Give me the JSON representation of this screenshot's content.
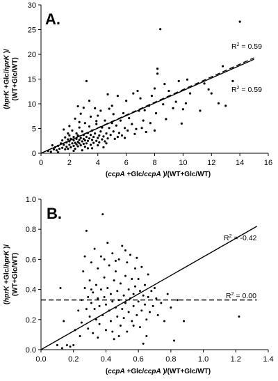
{
  "chart_data": [
    {
      "type": "scatter",
      "panel_label": "A.",
      "xlabel": {
        "paren_open": "(",
        "italic_1": "ccpA",
        "mid": " +Glc/",
        "italic_2": "ccpA",
        "tail": " )/(WT+Glc/WT)"
      },
      "ylabel_line1": {
        "paren_open": "(",
        "italic_1": "hprK",
        "mid": " +Glc/",
        "italic_2": "hprK",
        "tail": " )/"
      },
      "ylabel_line2": "(WT+Glc/WT)",
      "xlim": [
        0,
        16
      ],
      "ylim": [
        0,
        30
      ],
      "xticks": [
        0,
        2,
        4,
        6,
        8,
        10,
        12,
        14,
        16
      ],
      "yticks": [
        0,
        5,
        10,
        15,
        20,
        25,
        30
      ],
      "grid": false,
      "fits": [
        {
          "style": "solid",
          "x": [
            0,
            15
          ],
          "y": [
            0,
            19.0
          ],
          "r2_label": {
            "prefix": "R",
            "sup": "2",
            "value": " = 0.59"
          }
        },
        {
          "style": "dashed",
          "x": [
            0,
            15
          ],
          "y": [
            0,
            19.3
          ],
          "r2_label": {
            "prefix": "R",
            "sup": "2",
            "value": " = 0.59"
          }
        }
      ],
      "points": [
        [
          0.5,
          0.5
        ],
        [
          0.7,
          0.3
        ],
        [
          0.9,
          0.8
        ],
        [
          1.0,
          1.2
        ],
        [
          1.1,
          0.6
        ],
        [
          1.2,
          1.5
        ],
        [
          1.3,
          0.9
        ],
        [
          1.4,
          2.0
        ],
        [
          1.5,
          1.1
        ],
        [
          1.5,
          2.6
        ],
        [
          1.6,
          1.7
        ],
        [
          1.7,
          0.8
        ],
        [
          1.7,
          3.2
        ],
        [
          1.8,
          2.2
        ],
        [
          1.8,
          1.3
        ],
        [
          1.9,
          2.8
        ],
        [
          1.9,
          4.0
        ],
        [
          2.0,
          1.7
        ],
        [
          2.0,
          2.4
        ],
        [
          2.0,
          3.6
        ],
        [
          2.1,
          1.2
        ],
        [
          2.1,
          2.9
        ],
        [
          2.2,
          2.0
        ],
        [
          2.2,
          4.6
        ],
        [
          2.3,
          1.5
        ],
        [
          2.3,
          2.6
        ],
        [
          2.3,
          3.3
        ],
        [
          2.4,
          0.9
        ],
        [
          2.4,
          2.1
        ],
        [
          2.4,
          7.0
        ],
        [
          2.5,
          1.8
        ],
        [
          2.5,
          2.9
        ],
        [
          2.5,
          4.0
        ],
        [
          2.6,
          2.3
        ],
        [
          2.6,
          1.4
        ],
        [
          2.6,
          3.6
        ],
        [
          2.7,
          2.0
        ],
        [
          2.7,
          2.7
        ],
        [
          2.7,
          5.2
        ],
        [
          2.8,
          1.6
        ],
        [
          2.8,
          3.1
        ],
        [
          2.8,
          8.0
        ],
        [
          2.9,
          2.4
        ],
        [
          2.9,
          4.4
        ],
        [
          3.0,
          1.9
        ],
        [
          3.0,
          2.9
        ],
        [
          3.0,
          3.7
        ],
        [
          3.0,
          9.2
        ],
        [
          3.1,
          1.3
        ],
        [
          3.1,
          2.6
        ],
        [
          3.1,
          6.1
        ],
        [
          3.2,
          3.3
        ],
        [
          3.2,
          2.0
        ],
        [
          3.2,
          14.6
        ],
        [
          3.3,
          4.1
        ],
        [
          3.3,
          2.5
        ],
        [
          3.4,
          3.0
        ],
        [
          3.4,
          5.4
        ],
        [
          3.5,
          1.7
        ],
        [
          3.5,
          3.7
        ],
        [
          3.5,
          7.4
        ],
        [
          3.6,
          2.7
        ],
        [
          3.6,
          4.6
        ],
        [
          3.7,
          2.1
        ],
        [
          3.7,
          3.3
        ],
        [
          3.8,
          9.1
        ],
        [
          3.8,
          4.0
        ],
        [
          3.9,
          2.5
        ],
        [
          3.9,
          5.9
        ],
        [
          4.0,
          3.1
        ],
        [
          4.0,
          1.6
        ],
        [
          4.0,
          7.6
        ],
        [
          4.1,
          3.6
        ],
        [
          4.1,
          2.2
        ],
        [
          4.2,
          4.4
        ],
        [
          4.2,
          8.6
        ],
        [
          4.3,
          2.8
        ],
        [
          4.3,
          5.2
        ],
        [
          4.4,
          3.4
        ],
        [
          4.5,
          6.6
        ],
        [
          4.5,
          2.4
        ],
        [
          4.6,
          4.0
        ],
        [
          4.7,
          3.0
        ],
        [
          4.7,
          11.9
        ],
        [
          4.8,
          5.1
        ],
        [
          4.9,
          3.7
        ],
        [
          5.0,
          6.1
        ],
        [
          5.0,
          9.6
        ],
        [
          5.1,
          4.4
        ],
        [
          5.2,
          2.9
        ],
        [
          5.3,
          5.6
        ],
        [
          5.4,
          11.6
        ],
        [
          5.5,
          4.1
        ],
        [
          5.6,
          6.6
        ],
        [
          5.7,
          3.6
        ],
        [
          5.8,
          8.1
        ],
        [
          5.9,
          5.1
        ],
        [
          6.0,
          10.6
        ],
        [
          6.1,
          4.6
        ],
        [
          6.2,
          7.1
        ],
        [
          6.4,
          5.9
        ],
        [
          6.5,
          12.1
        ],
        [
          6.7,
          4.9
        ],
        [
          6.9,
          8.6
        ],
        [
          7.0,
          11.1
        ],
        [
          7.2,
          6.6
        ],
        [
          7.4,
          4.3
        ],
        [
          7.6,
          9.6
        ],
        [
          7.7,
          6.1
        ],
        [
          7.8,
          11.6
        ],
        [
          8.0,
          13.1
        ],
        [
          8.0,
          4.6
        ],
        [
          8.1,
          8.1
        ],
        [
          8.2,
          16.1
        ],
        [
          8.2,
          17.1
        ],
        [
          8.4,
          25.1
        ],
        [
          8.6,
          9.9
        ],
        [
          8.8,
          6.9
        ],
        [
          9.0,
          12.6
        ],
        [
          9.3,
          9.1
        ],
        [
          9.5,
          10.4
        ],
        [
          9.7,
          14.6
        ],
        [
          10.0,
          8.9
        ],
        [
          10.2,
          10.1
        ],
        [
          10.5,
          12.1
        ],
        [
          11.2,
          8.6
        ],
        [
          11.5,
          14.1
        ],
        [
          12.0,
          12.1
        ],
        [
          12.5,
          10.1
        ],
        [
          12.8,
          17.6
        ],
        [
          13.0,
          9.6
        ],
        [
          13.5,
          14.6
        ],
        [
          14.0,
          26.6
        ],
        [
          2.3,
          0.5
        ],
        [
          1.6,
          4.8
        ],
        [
          2.9,
          0.6
        ],
        [
          3.6,
          1.0
        ],
        [
          4.4,
          1.2
        ],
        [
          6.6,
          3.9
        ],
        [
          5.1,
          7.9
        ],
        [
          7.1,
          5.1
        ],
        [
          3.4,
          10.6
        ],
        [
          2.7,
          6.3
        ],
        [
          1.2,
          0.2
        ],
        [
          0.8,
          1.6
        ],
        [
          2.0,
          5.5
        ],
        [
          2.6,
          9.5
        ],
        [
          3.9,
          6.5
        ],
        [
          4.8,
          9.0
        ],
        [
          5.9,
          3.1
        ],
        [
          6.8,
          12.6
        ],
        [
          9.9,
          6.0
        ],
        [
          10.3,
          14.9
        ],
        [
          1.9,
          0.9
        ],
        [
          3.3,
          1.0
        ],
        [
          4.6,
          2.0
        ],
        [
          5.4,
          3.3
        ],
        [
          7.3,
          8.7
        ],
        [
          8.7,
          14.0
        ],
        [
          11.8,
          12.9
        ]
      ]
    },
    {
      "type": "scatter",
      "panel_label": "B.",
      "xlabel": {
        "paren_open": "(",
        "italic_1": "ccpA",
        "mid": " +Glc/",
        "italic_2": "ccpA",
        "tail": " )/(WT+Glc/WT)"
      },
      "ylabel_line1": {
        "paren_open": "(",
        "italic_1": "hprK",
        "mid": " +Glc/",
        "italic_2": "hprK",
        "tail": " )/"
      },
      "ylabel_line2": "(WT+Glc/WT)",
      "xlim": [
        0,
        1.4
      ],
      "ylim": [
        0,
        1.0
      ],
      "xticks": [
        "0.0",
        "0.2",
        "0.4",
        "0.6",
        "0.8",
        "1.0",
        "1.2",
        "1.4"
      ],
      "yticks": [
        "0.0",
        "0.2",
        "0.4",
        "0.6",
        "0.8",
        "1.0"
      ],
      "grid": false,
      "fits": [
        {
          "style": "solid",
          "x": [
            0,
            1.33
          ],
          "y": [
            0,
            0.82
          ],
          "r2_label": {
            "prefix": "R",
            "sup": "2",
            "value": " = -0.42"
          }
        },
        {
          "style": "dashed",
          "x": [
            0,
            1.33
          ],
          "y": [
            0.33,
            0.33
          ],
          "r2_label": {
            "prefix": "R",
            "sup": "2",
            "value": " = 0.00"
          }
        }
      ],
      "points": [
        [
          0.1,
          0.03
        ],
        [
          0.12,
          0.41
        ],
        [
          0.13,
          0.01
        ],
        [
          0.14,
          0.19
        ],
        [
          0.16,
          0.03
        ],
        [
          0.18,
          0.02
        ],
        [
          0.2,
          0.03
        ],
        [
          0.21,
          0.13
        ],
        [
          0.23,
          0.26
        ],
        [
          0.24,
          0.09
        ],
        [
          0.25,
          0.33
        ],
        [
          0.25,
          0.18
        ],
        [
          0.26,
          0.52
        ],
        [
          0.27,
          0.41
        ],
        [
          0.28,
          0.27
        ],
        [
          0.28,
          0.79
        ],
        [
          0.29,
          0.14
        ],
        [
          0.29,
          0.35
        ],
        [
          0.3,
          0.46
        ],
        [
          0.3,
          0.22
        ],
        [
          0.31,
          0.58
        ],
        [
          0.31,
          0.31
        ],
        [
          0.32,
          0.38
        ],
        [
          0.32,
          0.11
        ],
        [
          0.33,
          0.27
        ],
        [
          0.33,
          0.67
        ],
        [
          0.34,
          0.43
        ],
        [
          0.34,
          0.2
        ],
        [
          0.35,
          0.34
        ],
        [
          0.35,
          0.54
        ],
        [
          0.36,
          0.29
        ],
        [
          0.36,
          0.17
        ],
        [
          0.37,
          0.4
        ],
        [
          0.37,
          0.62
        ],
        [
          0.38,
          0.23
        ],
        [
          0.38,
          0.9
        ],
        [
          0.39,
          0.35
        ],
        [
          0.39,
          0.48
        ],
        [
          0.4,
          0.13
        ],
        [
          0.4,
          0.3
        ],
        [
          0.41,
          0.71
        ],
        [
          0.41,
          0.41
        ],
        [
          0.42,
          0.26
        ],
        [
          0.42,
          0.56
        ],
        [
          0.43,
          0.19
        ],
        [
          0.43,
          0.37
        ],
        [
          0.44,
          0.64
        ],
        [
          0.44,
          0.32
        ],
        [
          0.45,
          0.46
        ],
        [
          0.45,
          0.07
        ],
        [
          0.46,
          0.28
        ],
        [
          0.46,
          0.52
        ],
        [
          0.47,
          0.22
        ],
        [
          0.47,
          0.39
        ],
        [
          0.48,
          0.6
        ],
        [
          0.48,
          0.33
        ],
        [
          0.49,
          0.16
        ],
        [
          0.49,
          0.44
        ],
        [
          0.5,
          0.27
        ],
        [
          0.5,
          0.69
        ],
        [
          0.51,
          0.36
        ],
        [
          0.51,
          0.21
        ],
        [
          0.52,
          0.49
        ],
        [
          0.52,
          0.31
        ],
        [
          0.53,
          0.12
        ],
        [
          0.53,
          0.58
        ],
        [
          0.54,
          0.4
        ],
        [
          0.54,
          0.25
        ],
        [
          0.55,
          0.34
        ],
        [
          0.55,
          0.63
        ],
        [
          0.56,
          0.47
        ],
        [
          0.56,
          0.19
        ],
        [
          0.57,
          0.37
        ],
        [
          0.57,
          0.29
        ],
        [
          0.58,
          0.54
        ],
        [
          0.58,
          0.42
        ],
        [
          0.59,
          0.23
        ],
        [
          0.59,
          0.61
        ],
        [
          0.6,
          0.32
        ],
        [
          0.6,
          0.47
        ],
        [
          0.61,
          0.15
        ],
        [
          0.61,
          0.39
        ],
        [
          0.62,
          0.26
        ],
        [
          0.62,
          0.55
        ],
        [
          0.63,
          0.36
        ],
        [
          0.63,
          0.04
        ],
        [
          0.64,
          0.43
        ],
        [
          0.64,
          0.3
        ],
        [
          0.65,
          0.09
        ],
        [
          0.65,
          0.2
        ],
        [
          0.66,
          0.35
        ],
        [
          0.66,
          0.5
        ],
        [
          0.67,
          0.25
        ],
        [
          0.68,
          0.39
        ],
        [
          0.69,
          0.29
        ],
        [
          0.7,
          0.41
        ],
        [
          0.71,
          0.34
        ],
        [
          0.72,
          0.23
        ],
        [
          0.74,
          0.31
        ],
        [
          0.76,
          0.19
        ],
        [
          0.78,
          0.37
        ],
        [
          0.8,
          0.28
        ],
        [
          0.82,
          0.06
        ],
        [
          0.84,
          0.33
        ],
        [
          0.88,
          0.19
        ],
        [
          1.22,
          0.22
        ],
        [
          0.35,
          0.08
        ],
        [
          0.48,
          0.09
        ],
        [
          0.27,
          0.62
        ],
        [
          0.44,
          0.12
        ],
        [
          0.57,
          0.16
        ],
        [
          0.39,
          0.6
        ],
        [
          0.52,
          0.66
        ],
        [
          0.31,
          0.4
        ],
        [
          0.46,
          0.59
        ]
      ]
    }
  ]
}
